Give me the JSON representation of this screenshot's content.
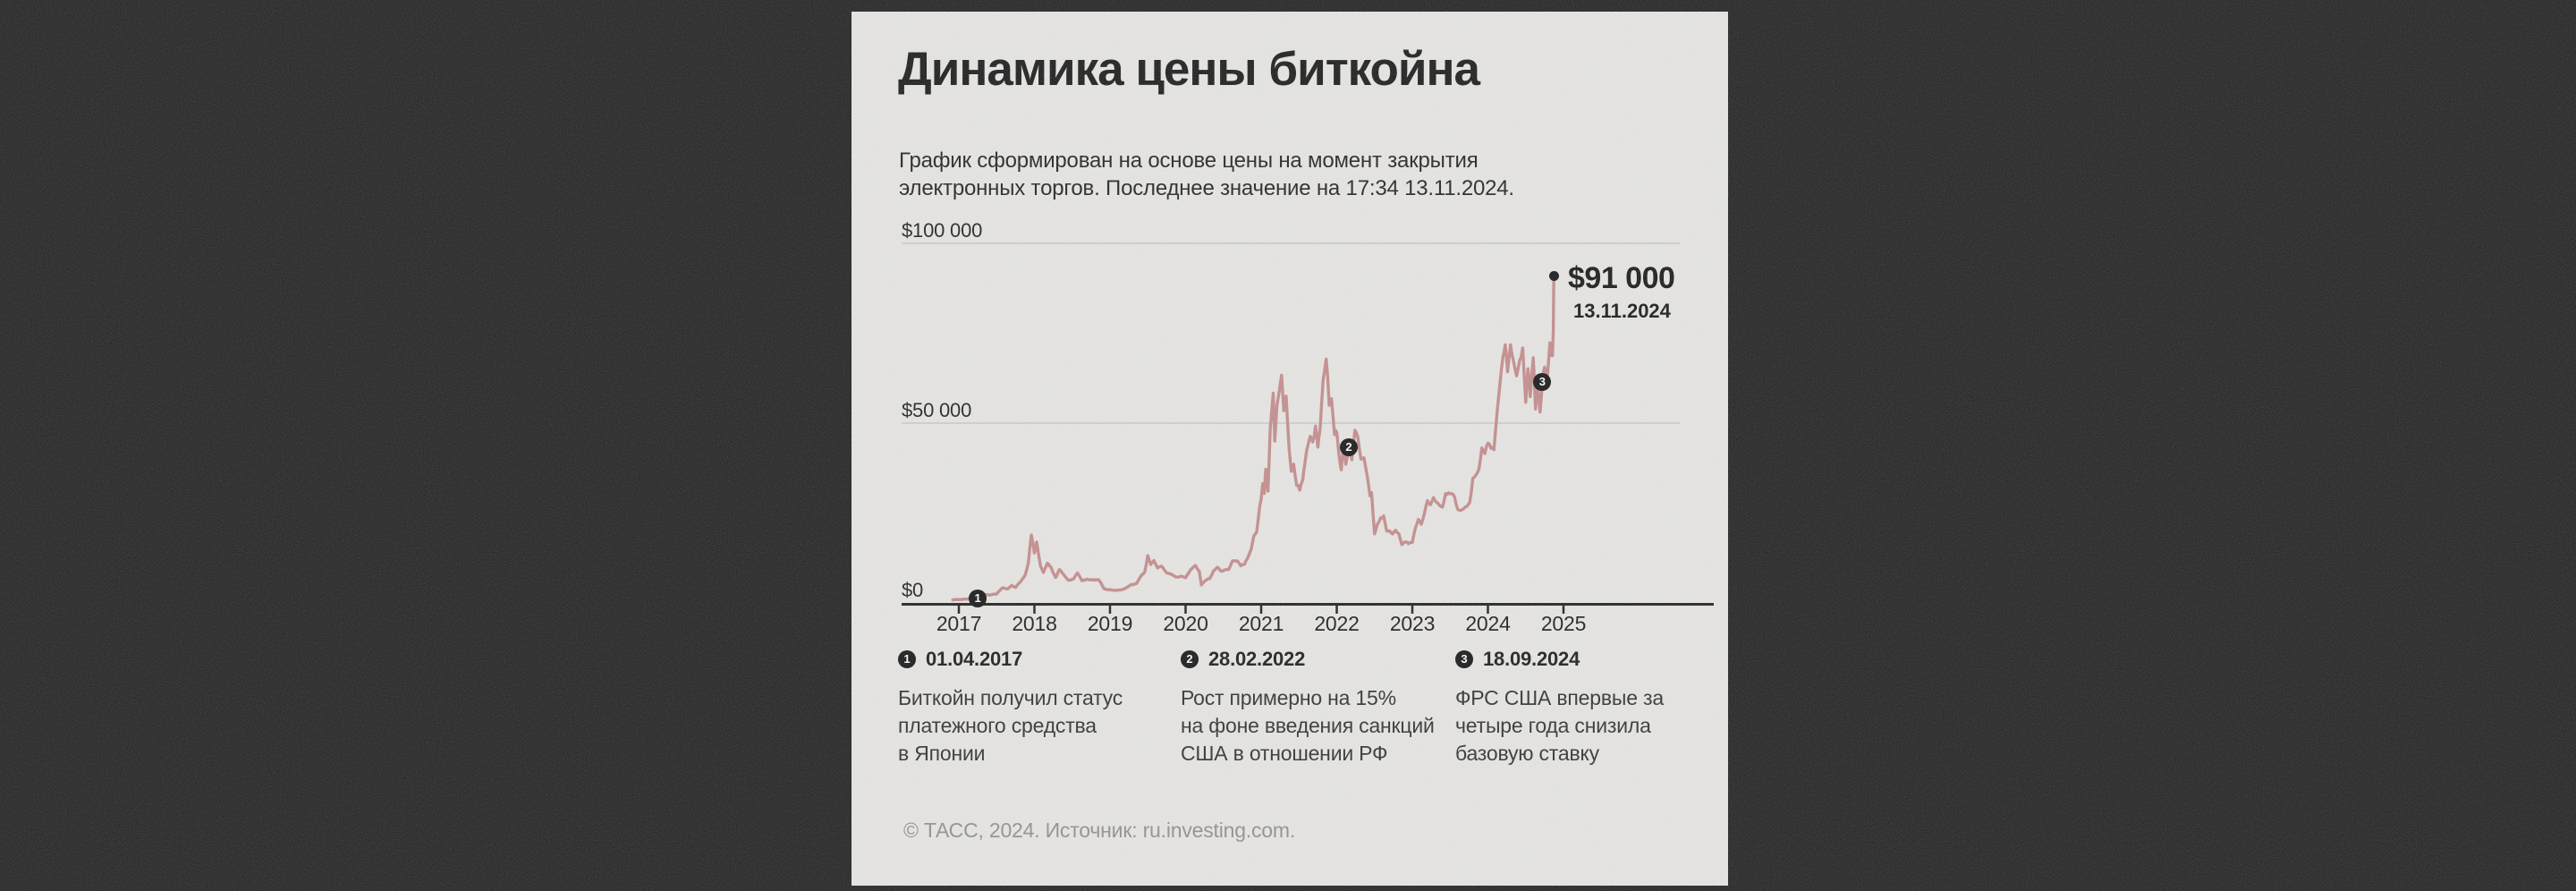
{
  "card": {
    "title": "Динамика цены биткойна",
    "subtitle_line1": "График сформирован на основе цены на момент закрытия",
    "subtitle_line2": "электронных торгов. Последнее значение на 17:34 13.11.2024.",
    "footer": "© ТАСС, 2024. Источник: ru.investing.com."
  },
  "annotation": {
    "value": "$91 000",
    "date": "13.11.2024"
  },
  "legend": {
    "items": [
      {
        "number": "1",
        "date": "01.04.2017",
        "lines": [
          "Биткойн получил статус",
          "платежного средства",
          "в Японии"
        ]
      },
      {
        "number": "2",
        "date": "28.02.2022",
        "lines": [
          "Рост примерно на 15%",
          "на фоне введения санкций",
          "США в отношении РФ"
        ]
      },
      {
        "number": "3",
        "date": "18.09.2024",
        "lines": [
          "ФРС США впервые за",
          "четыре года снизила",
          "базовую ставку"
        ]
      }
    ]
  },
  "colors": {
    "page_background": "#1b1b1b",
    "card_background": "#e9e8e5",
    "line": "#c48a8a",
    "gridline": "#c9c8c4",
    "axis": "#1a1a1a",
    "marker": "#101010",
    "footer_text": "#8f8e8c"
  },
  "chart_data": {
    "type": "line",
    "title": "Динамика цены биткойна",
    "grid": "horizontal",
    "legend_position": "below",
    "xlim": [
      2016.9,
      2025.5
    ],
    "ylim": [
      0,
      100000
    ],
    "x_ticks": [
      2017,
      2018,
      2019,
      2020,
      2021,
      2022,
      2023,
      2024,
      2025
    ],
    "x_tick_labels": [
      "2017",
      "2018",
      "2019",
      "2020",
      "2021",
      "2022",
      "2023",
      "2024",
      "2025"
    ],
    "y_ticks": [
      0,
      50000,
      100000
    ],
    "y_tick_labels": [
      "$0",
      "$50 000",
      "$100 000"
    ],
    "markers": [
      {
        "label": "1",
        "x": 2017.25,
        "value": 1150
      },
      {
        "label": "2",
        "x": 2022.16,
        "value": 43200
      },
      {
        "label": "3",
        "x": 2024.72,
        "value": 61500
      }
    ],
    "end_point": {
      "x": 2024.872,
      "value": 91000,
      "label": "$91 000",
      "date": "13.11.2024"
    },
    "keypoints": [
      [
        2016.92,
        850
      ],
      [
        2017.05,
        1000
      ],
      [
        2017.15,
        1150
      ],
      [
        2017.25,
        1150
      ],
      [
        2017.33,
        2400
      ],
      [
        2017.42,
        2300
      ],
      [
        2017.5,
        2600
      ],
      [
        2017.58,
        4200
      ],
      [
        2017.65,
        4000
      ],
      [
        2017.7,
        4900
      ],
      [
        2017.75,
        4300
      ],
      [
        2017.82,
        6100
      ],
      [
        2017.88,
        8000
      ],
      [
        2017.92,
        11000
      ],
      [
        2017.96,
        19000
      ],
      [
        2018.0,
        13800
      ],
      [
        2018.03,
        17000
      ],
      [
        2018.08,
        10500
      ],
      [
        2018.12,
        8500
      ],
      [
        2018.17,
        11000
      ],
      [
        2018.22,
        9800
      ],
      [
        2018.28,
        7000
      ],
      [
        2018.33,
        9200
      ],
      [
        2018.4,
        7500
      ],
      [
        2018.45,
        6300
      ],
      [
        2018.52,
        6600
      ],
      [
        2018.57,
        8200
      ],
      [
        2018.63,
        6300
      ],
      [
        2018.7,
        6500
      ],
      [
        2018.78,
        6400
      ],
      [
        2018.85,
        6400
      ],
      [
        2018.88,
        5600
      ],
      [
        2018.92,
        4000
      ],
      [
        2018.98,
        3700
      ],
      [
        2019.04,
        3500
      ],
      [
        2019.12,
        3600
      ],
      [
        2019.2,
        3900
      ],
      [
        2019.28,
        5100
      ],
      [
        2019.35,
        5400
      ],
      [
        2019.42,
        8000
      ],
      [
        2019.46,
        8600
      ],
      [
        2019.5,
        12900
      ],
      [
        2019.54,
        10800
      ],
      [
        2019.58,
        11900
      ],
      [
        2019.63,
        9800
      ],
      [
        2019.68,
        10300
      ],
      [
        2019.75,
        8300
      ],
      [
        2019.82,
        8000
      ],
      [
        2019.88,
        7200
      ],
      [
        2019.95,
        7500
      ],
      [
        2020.0,
        7200
      ],
      [
        2020.07,
        9400
      ],
      [
        2020.13,
        10200
      ],
      [
        2020.18,
        8800
      ],
      [
        2020.21,
        4900
      ],
      [
        2020.27,
        6400
      ],
      [
        2020.32,
        6800
      ],
      [
        2020.37,
        8800
      ],
      [
        2020.42,
        9700
      ],
      [
        2020.47,
        9000
      ],
      [
        2020.52,
        9200
      ],
      [
        2020.57,
        9100
      ],
      [
        2020.62,
        11400
      ],
      [
        2020.68,
        11700
      ],
      [
        2020.73,
        10300
      ],
      [
        2020.78,
        10700
      ],
      [
        2020.83,
        13000
      ],
      [
        2020.87,
        15500
      ],
      [
        2020.9,
        18400
      ],
      [
        2020.94,
        19200
      ],
      [
        2020.98,
        26500
      ],
      [
        2021.0,
        29000
      ],
      [
        2021.02,
        33500
      ],
      [
        2021.04,
        31000
      ],
      [
        2021.06,
        38000
      ],
      [
        2021.09,
        31500
      ],
      [
        2021.12,
        48000
      ],
      [
        2021.16,
        57500
      ],
      [
        2021.18,
        45000
      ],
      [
        2021.21,
        55000
      ],
      [
        2021.24,
        59000
      ],
      [
        2021.27,
        63500
      ],
      [
        2021.3,
        54000
      ],
      [
        2021.33,
        58000
      ],
      [
        2021.37,
        43000
      ],
      [
        2021.4,
        36500
      ],
      [
        2021.43,
        39000
      ],
      [
        2021.47,
        33500
      ],
      [
        2021.51,
        31800
      ],
      [
        2021.55,
        34200
      ],
      [
        2021.58,
        39500
      ],
      [
        2021.62,
        44500
      ],
      [
        2021.65,
        47000
      ],
      [
        2021.68,
        44700
      ],
      [
        2021.72,
        48800
      ],
      [
        2021.75,
        42800
      ],
      [
        2021.78,
        48000
      ],
      [
        2021.82,
        61500
      ],
      [
        2021.86,
        68900
      ],
      [
        2021.88,
        64000
      ],
      [
        2021.9,
        56500
      ],
      [
        2021.93,
        57200
      ],
      [
        2021.97,
        46700
      ],
      [
        2022.0,
        47700
      ],
      [
        2022.03,
        41500
      ],
      [
        2022.06,
        36900
      ],
      [
        2022.09,
        44400
      ],
      [
        2022.12,
        37800
      ],
      [
        2022.16,
        43200
      ],
      [
        2022.2,
        39000
      ],
      [
        2022.24,
        47500
      ],
      [
        2022.28,
        45800
      ],
      [
        2022.32,
        39700
      ],
      [
        2022.36,
        40000
      ],
      [
        2022.4,
        35500
      ],
      [
        2022.44,
        29000
      ],
      [
        2022.46,
        30000
      ],
      [
        2022.5,
        19000
      ],
      [
        2022.54,
        21600
      ],
      [
        2022.58,
        23300
      ],
      [
        2022.62,
        23900
      ],
      [
        2022.66,
        20100
      ],
      [
        2022.7,
        19800
      ],
      [
        2022.74,
        18800
      ],
      [
        2022.78,
        20300
      ],
      [
        2022.82,
        19100
      ],
      [
        2022.86,
        16300
      ],
      [
        2022.9,
        16800
      ],
      [
        2022.95,
        16500
      ],
      [
        2023.0,
        16600
      ],
      [
        2023.04,
        21100
      ],
      [
        2023.08,
        23000
      ],
      [
        2023.12,
        21800
      ],
      [
        2023.16,
        24800
      ],
      [
        2023.2,
        28300
      ],
      [
        2023.24,
        27800
      ],
      [
        2023.28,
        30000
      ],
      [
        2023.32,
        28000
      ],
      [
        2023.36,
        26800
      ],
      [
        2023.4,
        27200
      ],
      [
        2023.44,
        30500
      ],
      [
        2023.48,
        30400
      ],
      [
        2023.52,
        29900
      ],
      [
        2023.56,
        29200
      ],
      [
        2023.6,
        26100
      ],
      [
        2023.64,
        25900
      ],
      [
        2023.68,
        26600
      ],
      [
        2023.72,
        26800
      ],
      [
        2023.76,
        27900
      ],
      [
        2023.8,
        34500
      ],
      [
        2023.84,
        34900
      ],
      [
        2023.88,
        37700
      ],
      [
        2023.92,
        43800
      ],
      [
        2023.96,
        42300
      ],
      [
        2024.0,
        44200
      ],
      [
        2024.04,
        42900
      ],
      [
        2024.08,
        43100
      ],
      [
        2024.12,
        52000
      ],
      [
        2024.16,
        61500
      ],
      [
        2024.2,
        68300
      ],
      [
        2024.23,
        73100
      ],
      [
        2024.26,
        64500
      ],
      [
        2024.3,
        70800
      ],
      [
        2024.34,
        66000
      ],
      [
        2024.38,
        63800
      ],
      [
        2024.42,
        67200
      ],
      [
        2024.46,
        70600
      ],
      [
        2024.5,
        56600
      ],
      [
        2024.53,
        65000
      ],
      [
        2024.56,
        57800
      ],
      [
        2024.6,
        67800
      ],
      [
        2024.63,
        54300
      ],
      [
        2024.66,
        59400
      ],
      [
        2024.69,
        53900
      ],
      [
        2024.72,
        61500
      ],
      [
        2024.75,
        65800
      ],
      [
        2024.78,
        60800
      ],
      [
        2024.8,
        67000
      ],
      [
        2024.82,
        72300
      ],
      [
        2024.84,
        68800
      ],
      [
        2024.855,
        69400
      ],
      [
        2024.865,
        75000
      ],
      [
        2024.872,
        91000
      ]
    ]
  }
}
